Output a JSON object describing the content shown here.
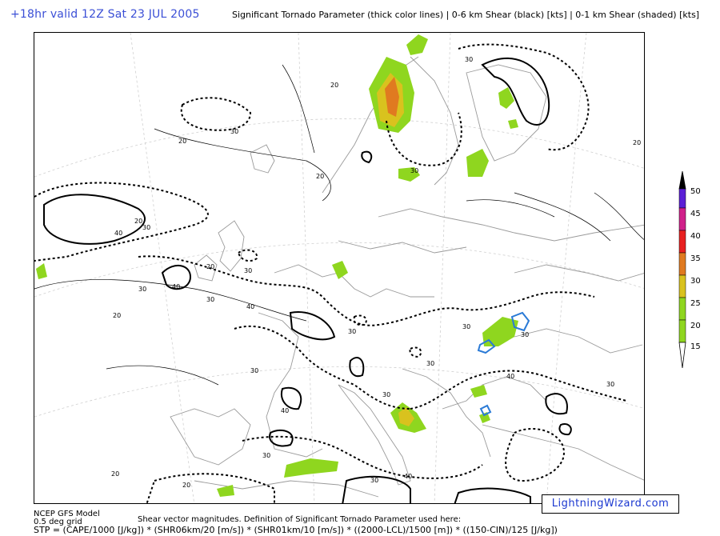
{
  "header": {
    "valid_time": "+18hr valid 12Z Sat 23 JUL 2005",
    "title": "Significant Tornado Parameter (thick color lines) | 0-6 km Shear (black) [kts] | 0-1 km Shear (shaded) [kts]"
  },
  "legend": {
    "labels": [
      "50",
      "45",
      "40",
      "35",
      "30",
      "25",
      "20",
      "15"
    ],
    "colors": [
      "#000000",
      "#5a1fd6",
      "#d0208a",
      "#e82020",
      "#e07a20",
      "#d9c21e",
      "#8fd61f",
      "#8fd61f"
    ]
  },
  "map": {
    "contour_labels": [
      "20",
      "30",
      "40",
      "20",
      "30",
      "20",
      "30",
      "40",
      "30",
      "20",
      "30",
      "40",
      "30",
      "20",
      "40",
      "30",
      "30",
      "30",
      "20",
      "30",
      "40",
      "30",
      "20",
      "30",
      "30",
      "20",
      "40",
      "30",
      "20",
      "30",
      "30"
    ],
    "colors": {
      "shade_light": "#8fd61f",
      "shade_mid": "#d9c21e",
      "shade_dark": "#e07a20",
      "stp_line": "#2a7ad6",
      "coast": "#999999"
    }
  },
  "footer": {
    "model": "NCEP GFS Model",
    "grid": "0.5 deg grid",
    "formula": "STP = (CAPE/1000 [J/kg]) * (SHR06km/20 [m/s]) * (SHR01km/10 [m/s]) * ((2000-LCL)/1500 [m]) * ((150-CIN)/125 [J/kg])",
    "note": "Shear vector magnitudes. Definition of Significant Tornado Parameter used here:"
  },
  "brand": "LightningWizard.com"
}
